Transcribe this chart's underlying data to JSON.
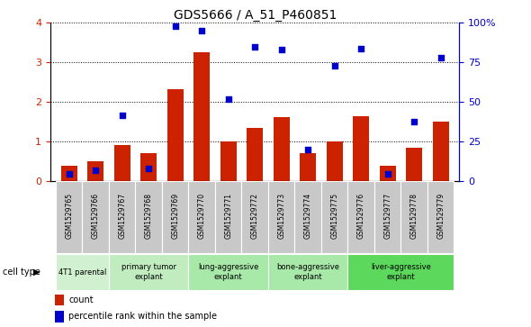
{
  "title": "GDS5666 / A_51_P460851",
  "samples": [
    "GSM1529765",
    "GSM1529766",
    "GSM1529767",
    "GSM1529768",
    "GSM1529769",
    "GSM1529770",
    "GSM1529771",
    "GSM1529772",
    "GSM1529773",
    "GSM1529774",
    "GSM1529775",
    "GSM1529776",
    "GSM1529777",
    "GSM1529778",
    "GSM1529779"
  ],
  "counts": [
    0.4,
    0.5,
    0.93,
    0.72,
    2.33,
    3.27,
    1.0,
    1.35,
    1.63,
    0.72,
    1.02,
    1.65,
    0.4,
    0.85,
    1.5
  ],
  "percentiles": [
    5,
    7,
    42,
    8,
    98,
    95,
    52,
    85,
    83,
    20,
    73,
    84,
    5,
    38,
    78
  ],
  "cell_types": [
    {
      "label": "4T1 parental",
      "start": 0,
      "end": 1,
      "color": "#c8f0c8"
    },
    {
      "label": "primary tumor\nexplant",
      "start": 2,
      "end": 4,
      "color": "#c8f0c8"
    },
    {
      "label": "lung-aggressive\nexplant",
      "start": 5,
      "end": 7,
      "color": "#a8e8a8"
    },
    {
      "label": "bone-aggressive\nexplant",
      "start": 8,
      "end": 10,
      "color": "#a8e8a8"
    },
    {
      "label": "liver-aggressive\nexplant",
      "start": 11,
      "end": 14,
      "color": "#60d860"
    }
  ],
  "ylim_left": [
    0,
    4
  ],
  "ylim_right": [
    0,
    100
  ],
  "yticks_left": [
    0,
    1,
    2,
    3,
    4
  ],
  "yticks_right": [
    0,
    25,
    50,
    75,
    100
  ],
  "bar_color": "#cc2200",
  "dot_color": "#0000cc",
  "bg_color": "#ffffff",
  "title_fontsize": 10,
  "legend_count_label": "count",
  "legend_pct_label": "percentile rank within the sample",
  "sample_box_color": "#c8c8c8",
  "ct_colors": [
    "#d0f0d0",
    "#c0ecc0",
    "#a8e8a8",
    "#a8e8a8",
    "#5cd85c"
  ]
}
